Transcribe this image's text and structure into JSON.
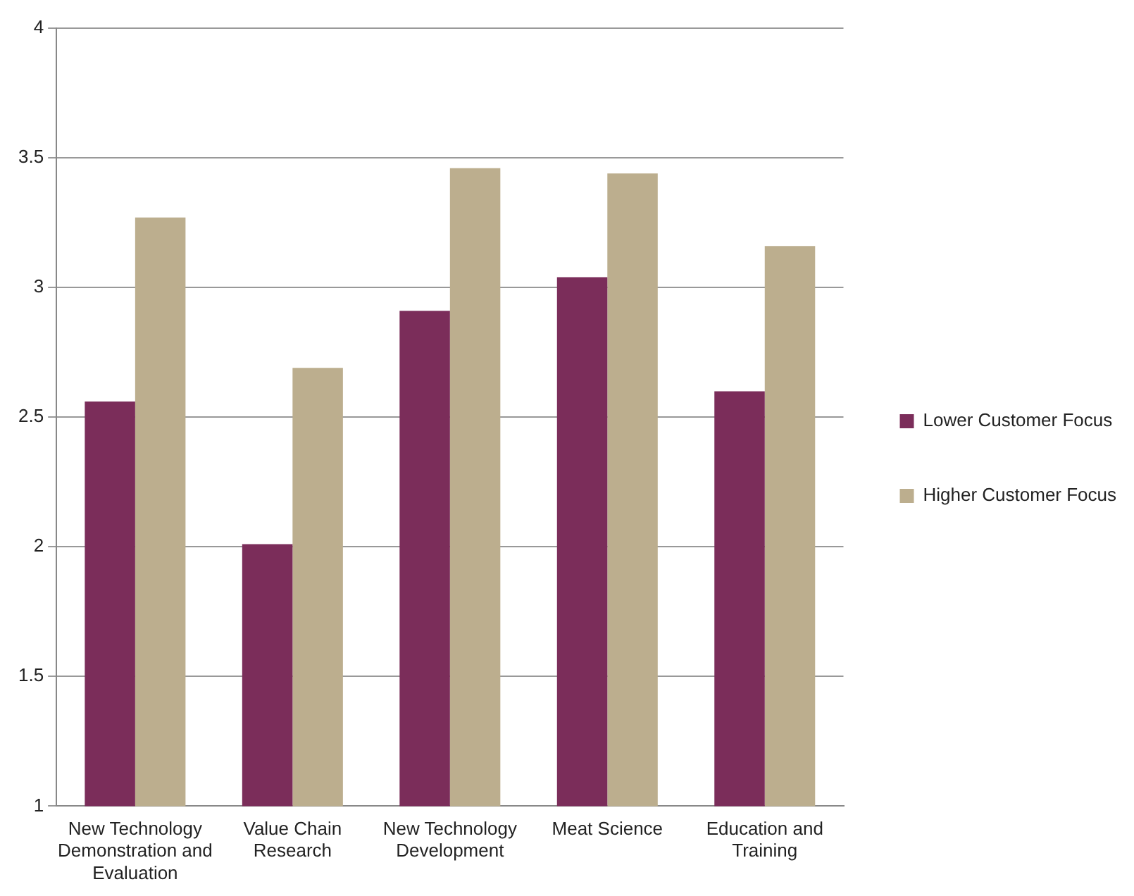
{
  "chart_data": {
    "type": "bar",
    "categories": [
      "New Technology Demonstration and Evaluation",
      "Value Chain Research",
      "New Technology Development",
      "Meat Science",
      "Education and Training"
    ],
    "series": [
      {
        "name": "Lower Customer Focus",
        "color": "#7b2d5a",
        "values": [
          2.56,
          2.01,
          2.91,
          3.04,
          2.6
        ]
      },
      {
        "name": "Higher Customer Focus",
        "color": "#bcae8e",
        "values": [
          3.27,
          2.69,
          3.46,
          3.44,
          3.16
        ]
      }
    ],
    "ylim": [
      1,
      4
    ],
    "yticks": [
      1,
      1.5,
      2,
      2.5,
      3,
      3.5,
      4
    ],
    "grid": "y",
    "legend": "right"
  }
}
